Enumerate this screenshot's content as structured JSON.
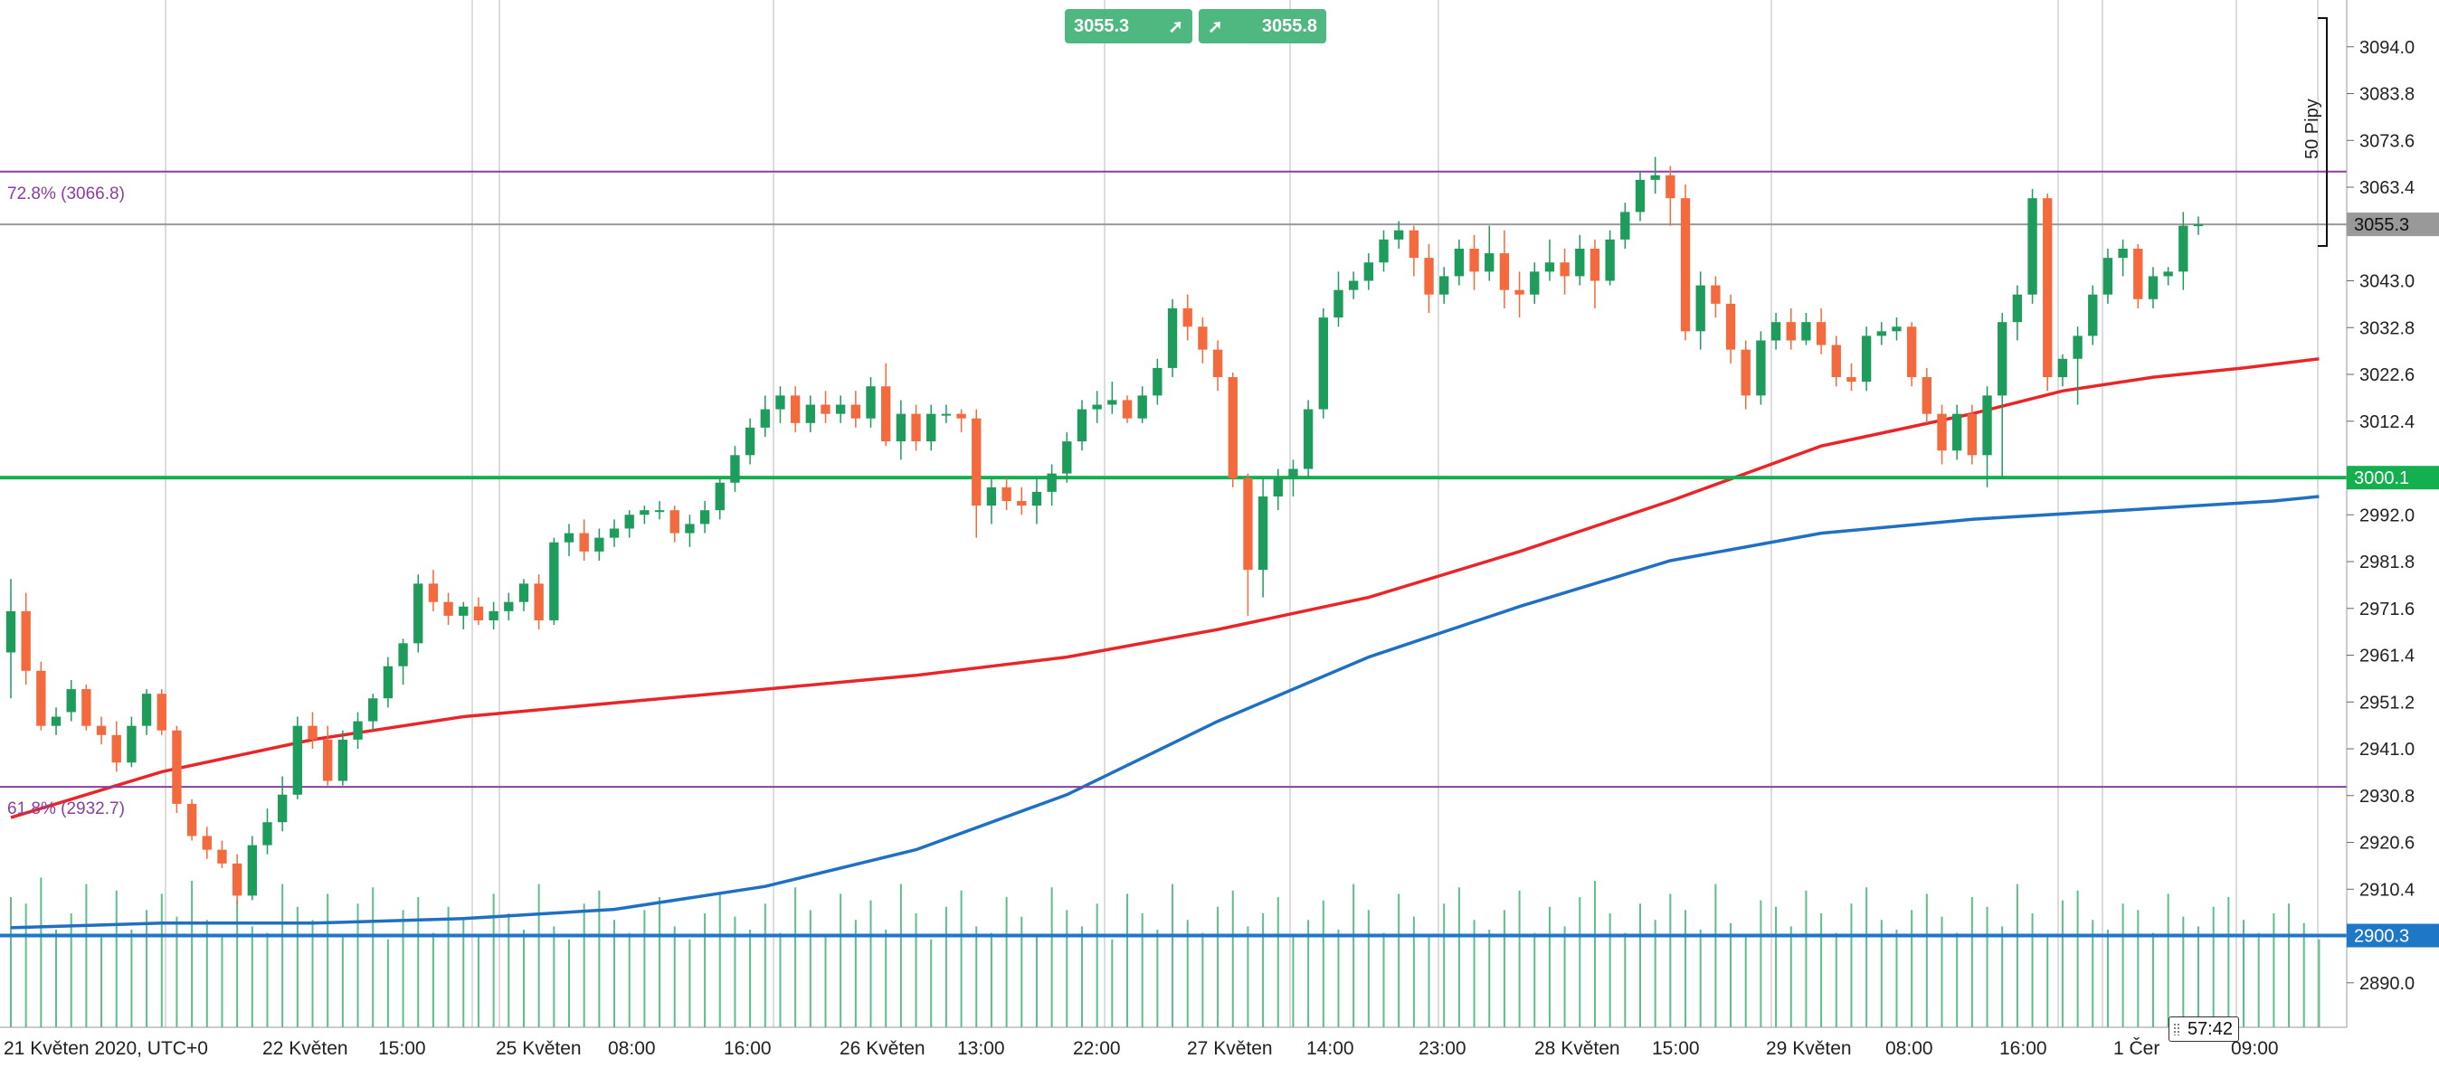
{
  "trade_buttons": {
    "sell": {
      "price": "3055.3",
      "icon": "arrow-up-right-icon"
    },
    "buy": {
      "price": "3055.8",
      "icon": "arrow-up-right-icon"
    }
  },
  "timer": {
    "value": "57:42"
  },
  "pips_label": "50 Pipy",
  "colors": {
    "up": "#1e9c5b",
    "down": "#f26a3d",
    "ma_fast": "#e8262a",
    "ma_slow": "#1f6fc2",
    "fib": "#8a3ea0",
    "hline_green": "#14b050",
    "hline_blue": "#1f77c8",
    "volume": "#5cbf8a",
    "current_price_bg": "#999999"
  },
  "chart_data": {
    "type": "candlestick",
    "timeframe": "1h",
    "x_tick_labels": [
      "21 Květen 2020, UTC+0",
      "22 Květen",
      "15:00",
      "25 Květen",
      "08:00",
      "16:00",
      "26 Květen",
      "13:00",
      "22:00",
      "27 Květen",
      "14:00",
      "23:00",
      "28 Květen",
      "15:00",
      "29 Květen",
      "08:00",
      "16:00",
      "1 Čer",
      "09:00"
    ],
    "y_ticks": [
      2890.0,
      2900.3,
      2910.4,
      2920.6,
      2930.8,
      2941.0,
      2951.2,
      2961.4,
      2971.6,
      2981.8,
      2992.0,
      3000.1,
      3012.4,
      3022.6,
      3032.8,
      3043.0,
      3055.3,
      3063.4,
      3073.6,
      3083.8,
      3094.0
    ],
    "ylim": [
      2880.3,
      3104.2
    ],
    "current_price": 3055.3,
    "horizontal_lines": [
      {
        "name": "level-3000",
        "value": 3000.1,
        "label": "3000.1",
        "color": "#14b050"
      },
      {
        "name": "level-2900",
        "value": 2900.3,
        "label": "2900.3",
        "color": "#1f77c8"
      }
    ],
    "fib_levels": [
      {
        "label": "72.8% (3066.8)",
        "value": 3066.8
      },
      {
        "label": "61.8% (2932.7)",
        "value": 2932.7
      }
    ],
    "candles": [
      [
        2962.0,
        2978.0,
        2952.0,
        2971.0
      ],
      [
        2971.0,
        2975.0,
        2955.0,
        2958.0
      ],
      [
        2958.0,
        2960.0,
        2945.0,
        2946.0
      ],
      [
        2946.0,
        2950.0,
        2944.0,
        2948.0
      ],
      [
        2949.0,
        2956.0,
        2947.0,
        2954.0
      ],
      [
        2954.0,
        2955.0,
        2945.0,
        2946.0
      ],
      [
        2946.0,
        2948.0,
        2942.0,
        2944.0
      ],
      [
        2944.0,
        2947.0,
        2936.0,
        2938.0
      ],
      [
        2938.0,
        2948.0,
        2937.0,
        2946.0
      ],
      [
        2946.0,
        2954.0,
        2944.0,
        2953.0
      ],
      [
        2953.0,
        2954.0,
        2944.0,
        2945.0
      ],
      [
        2945.0,
        2946.0,
        2927.0,
        2929.0
      ],
      [
        2929.0,
        2930.0,
        2921.0,
        2922.0
      ],
      [
        2922.0,
        2924.0,
        2917.0,
        2919.0
      ],
      [
        2919.0,
        2921.0,
        2915.0,
        2916.0
      ],
      [
        2916.0,
        2918.0,
        2907.0,
        2909.0
      ],
      [
        2909.0,
        2922.0,
        2908.0,
        2920.0
      ],
      [
        2920.0,
        2928.0,
        2918.0,
        2925.0
      ],
      [
        2925.0,
        2935.0,
        2923.0,
        2931.0
      ],
      [
        2931.0,
        2948.0,
        2930.0,
        2946.0
      ],
      [
        2946.0,
        2949.0,
        2941.0,
        2943.0
      ],
      [
        2943.0,
        2946.0,
        2933.0,
        2934.0
      ],
      [
        2934.0,
        2945.0,
        2933.0,
        2943.0
      ],
      [
        2943.0,
        2949.0,
        2941.0,
        2947.0
      ],
      [
        2947.0,
        2953.0,
        2945.0,
        2952.0
      ],
      [
        2952.0,
        2961.0,
        2950.0,
        2959.0
      ],
      [
        2959.0,
        2965.0,
        2955.0,
        2964.0
      ],
      [
        2964.0,
        2979.0,
        2962.0,
        2977.0
      ],
      [
        2977.0,
        2980.0,
        2971.0,
        2973.0
      ],
      [
        2973.0,
        2975.0,
        2968.0,
        2970.0
      ],
      [
        2970.0,
        2973.0,
        2967.0,
        2972.0
      ],
      [
        2972.0,
        2974.0,
        2968.0,
        2969.0
      ],
      [
        2969.0,
        2973.0,
        2967.0,
        2971.0
      ],
      [
        2971.0,
        2975.0,
        2969.0,
        2973.0
      ],
      [
        2973.0,
        2978.0,
        2971.0,
        2977.0
      ],
      [
        2977.0,
        2979.0,
        2967.0,
        2969.0
      ],
      [
        2969.0,
        2987.0,
        2968.0,
        2986.0
      ],
      [
        2986.0,
        2990.0,
        2983.0,
        2988.0
      ],
      [
        2988.0,
        2991.0,
        2982.0,
        2984.0
      ],
      [
        2984.0,
        2989.0,
        2982.0,
        2987.0
      ],
      [
        2987.0,
        2991.0,
        2985.0,
        2989.0
      ],
      [
        2989.0,
        2993.0,
        2987.0,
        2992.0
      ],
      [
        2992.0,
        2994.0,
        2990.0,
        2993.0
      ],
      [
        2993.0,
        2995.0,
        2991.0,
        2993.0
      ],
      [
        2993.0,
        2994.0,
        2986.0,
        2988.0
      ],
      [
        2988.0,
        2992.0,
        2985.0,
        2990.0
      ],
      [
        2990.0,
        2995.0,
        2988.0,
        2993.0
      ],
      [
        2993.0,
        3000.0,
        2991.0,
        2999.0
      ],
      [
        2999.0,
        3007.0,
        2997.0,
        3005.0
      ],
      [
        3005.0,
        3013.0,
        3003.0,
        3011.0
      ],
      [
        3011.0,
        3018.0,
        3009.0,
        3015.0
      ],
      [
        3015.0,
        3020.0,
        3012.0,
        3018.0
      ],
      [
        3018.0,
        3020.0,
        3010.0,
        3012.0
      ],
      [
        3012.0,
        3018.0,
        3010.0,
        3016.0
      ],
      [
        3016.0,
        3019.0,
        3012.0,
        3014.0
      ],
      [
        3014.0,
        3018.0,
        3012.0,
        3016.0
      ],
      [
        3016.0,
        3019.0,
        3011.0,
        3013.0
      ],
      [
        3013.0,
        3022.0,
        3011.0,
        3020.0
      ],
      [
        3020.0,
        3025.0,
        3007.0,
        3008.0
      ],
      [
        3008.0,
        3017.0,
        3004.0,
        3014.0
      ],
      [
        3014.0,
        3016.0,
        3006.0,
        3008.0
      ],
      [
        3008.0,
        3016.0,
        3006.0,
        3014.0
      ],
      [
        3014.0,
        3016.0,
        3012.0,
        3014.0
      ],
      [
        3014.0,
        3015.0,
        3010.0,
        3013.0
      ],
      [
        3013.0,
        3015.0,
        2987.0,
        2994.0
      ],
      [
        2994.0,
        3000.0,
        2990.0,
        2998.0
      ],
      [
        2998.0,
        3000.0,
        2993.0,
        2995.0
      ],
      [
        2995.0,
        2998.0,
        2992.0,
        2994.0
      ],
      [
        2994.0,
        3000.0,
        2990.0,
        2997.0
      ],
      [
        2997.0,
        3003.0,
        2994.0,
        3001.0
      ],
      [
        3001.0,
        3010.0,
        2999.0,
        3008.0
      ],
      [
        3008.0,
        3017.0,
        3006.0,
        3015.0
      ],
      [
        3015.0,
        3019.0,
        3012.0,
        3016.0
      ],
      [
        3016.0,
        3021.0,
        3014.0,
        3017.0
      ],
      [
        3017.0,
        3018.0,
        3012.0,
        3013.0
      ],
      [
        3013.0,
        3020.0,
        3012.0,
        3018.0
      ],
      [
        3018.0,
        3026.0,
        3016.0,
        3024.0
      ],
      [
        3024.0,
        3039.0,
        3022.0,
        3037.0
      ],
      [
        3037.0,
        3040.0,
        3030.0,
        3033.0
      ],
      [
        3033.0,
        3035.0,
        3025.0,
        3028.0
      ],
      [
        3028.0,
        3030.0,
        3019.0,
        3022.0
      ],
      [
        3022.0,
        3023.0,
        2998.0,
        3000.0
      ],
      [
        3000.0,
        3001.0,
        2970.0,
        2980.0
      ],
      [
        2980.0,
        3000.0,
        2974.0,
        2996.0
      ],
      [
        2996.0,
        3002.0,
        2993.0,
        3000.0
      ],
      [
        3000.0,
        3004.0,
        2996.0,
        3002.0
      ],
      [
        3002.0,
        3017.0,
        3000.0,
        3015.0
      ],
      [
        3015.0,
        3037.0,
        3013.0,
        3035.0
      ],
      [
        3035.0,
        3045.0,
        3033.0,
        3041.0
      ],
      [
        3041.0,
        3045.0,
        3039.0,
        3043.0
      ],
      [
        3043.0,
        3049.0,
        3041.0,
        3047.0
      ],
      [
        3047.0,
        3054.0,
        3045.0,
        3052.0
      ],
      [
        3052.0,
        3056.0,
        3050.0,
        3054.0
      ],
      [
        3054.0,
        3055.0,
        3044.0,
        3048.0
      ],
      [
        3048.0,
        3051.0,
        3036.0,
        3040.0
      ],
      [
        3040.0,
        3046.0,
        3038.0,
        3044.0
      ],
      [
        3044.0,
        3052.0,
        3042.0,
        3050.0
      ],
      [
        3050.0,
        3053.0,
        3041.0,
        3045.0
      ],
      [
        3045.0,
        3055.0,
        3043.0,
        3049.0
      ],
      [
        3049.0,
        3054.0,
        3037.0,
        3041.0
      ],
      [
        3041.0,
        3045.0,
        3035.0,
        3040.0
      ],
      [
        3040.0,
        3047.0,
        3038.0,
        3045.0
      ],
      [
        3045.0,
        3052.0,
        3043.0,
        3047.0
      ],
      [
        3047.0,
        3050.0,
        3040.0,
        3044.0
      ],
      [
        3044.0,
        3053.0,
        3042.0,
        3050.0
      ],
      [
        3050.0,
        3052.0,
        3037.0,
        3043.0
      ],
      [
        3043.0,
        3054.0,
        3042.0,
        3052.0
      ],
      [
        3052.0,
        3060.0,
        3050.0,
        3058.0
      ],
      [
        3058.0,
        3067.0,
        3056.0,
        3065.0
      ],
      [
        3065.0,
        3070.0,
        3062.0,
        3066.0
      ],
      [
        3066.0,
        3068.0,
        3055.0,
        3061.0
      ],
      [
        3061.0,
        3064.0,
        3030.0,
        3032.0
      ],
      [
        3032.0,
        3045.0,
        3028.0,
        3042.0
      ],
      [
        3042.0,
        3044.0,
        3035.0,
        3038.0
      ],
      [
        3038.0,
        3040.0,
        3025.0,
        3028.0
      ],
      [
        3028.0,
        3030.0,
        3015.0,
        3018.0
      ],
      [
        3018.0,
        3032.0,
        3016.0,
        3030.0
      ],
      [
        3030.0,
        3036.0,
        3028.0,
        3034.0
      ],
      [
        3034.0,
        3037.0,
        3028.0,
        3030.0
      ],
      [
        3030.0,
        3036.0,
        3029.0,
        3034.0
      ],
      [
        3034.0,
        3037.0,
        3027.0,
        3029.0
      ],
      [
        3029.0,
        3031.0,
        3020.0,
        3022.0
      ],
      [
        3022.0,
        3025.0,
        3019.0,
        3021.0
      ],
      [
        3021.0,
        3033.0,
        3019.0,
        3031.0
      ],
      [
        3031.0,
        3034.0,
        3029.0,
        3032.0
      ],
      [
        3032.0,
        3035.0,
        3030.0,
        3033.0
      ],
      [
        3033.0,
        3034.0,
        3020.0,
        3022.0
      ],
      [
        3022.0,
        3024.0,
        3012.0,
        3014.0
      ],
      [
        3014.0,
        3016.0,
        3003.0,
        3006.0
      ],
      [
        3006.0,
        3016.0,
        3004.0,
        3014.0
      ],
      [
        3014.0,
        3016.0,
        3003.0,
        3005.0
      ],
      [
        3005.0,
        3020.0,
        2998.0,
        3018.0
      ],
      [
        3018.0,
        3036.0,
        3000.0,
        3034.0
      ],
      [
        3034.0,
        3042.0,
        3030.0,
        3040.0
      ],
      [
        3040.0,
        3063.0,
        3038.0,
        3061.0
      ],
      [
        3061.0,
        3062.0,
        3019.0,
        3022.0
      ],
      [
        3022.0,
        3027.0,
        3020.0,
        3026.0
      ],
      [
        3026.0,
        3033.0,
        3016.0,
        3031.0
      ],
      [
        3031.0,
        3042.0,
        3029.0,
        3040.0
      ],
      [
        3040.0,
        3050.0,
        3038.0,
        3048.0
      ],
      [
        3048.0,
        3052.0,
        3044.0,
        3050.0
      ],
      [
        3050.0,
        3051.0,
        3037.0,
        3039.0
      ],
      [
        3039.0,
        3046.0,
        3037.0,
        3044.0
      ],
      [
        3044.0,
        3046.0,
        3042.0,
        3045.0
      ],
      [
        3045.0,
        3058.0,
        3041.0,
        3055.0
      ],
      [
        3055.0,
        3057.0,
        3053.0,
        3055.3
      ]
    ],
    "ma_fast": {
      "color": "#e8262a",
      "points": [
        [
          0,
          2926
        ],
        [
          10,
          2936
        ],
        [
          20,
          2943
        ],
        [
          30,
          2948
        ],
        [
          40,
          2951
        ],
        [
          50,
          2954
        ],
        [
          60,
          2957
        ],
        [
          70,
          2961
        ],
        [
          80,
          2967
        ],
        [
          90,
          2974
        ],
        [
          100,
          2984
        ],
        [
          110,
          2995
        ],
        [
          120,
          3007
        ],
        [
          130,
          3014
        ],
        [
          136,
          3019
        ],
        [
          142,
          3022
        ],
        [
          148,
          3024
        ],
        [
          153,
          3026
        ]
      ]
    },
    "ma_slow": {
      "color": "#1f6fc2",
      "points": [
        [
          0,
          2902
        ],
        [
          10,
          2903
        ],
        [
          20,
          2903
        ],
        [
          30,
          2904
        ],
        [
          40,
          2906
        ],
        [
          50,
          2911
        ],
        [
          60,
          2919
        ],
        [
          70,
          2931
        ],
        [
          80,
          2947
        ],
        [
          90,
          2961
        ],
        [
          100,
          2972
        ],
        [
          110,
          2982
        ],
        [
          120,
          2988
        ],
        [
          130,
          2991
        ],
        [
          140,
          2993
        ],
        [
          150,
          2995
        ],
        [
          153,
          2996
        ]
      ]
    },
    "volume": [
      40,
      38,
      46,
      30,
      35,
      44,
      28,
      42,
      30,
      36,
      41,
      34,
      45,
      33,
      28,
      39,
      31,
      29,
      44,
      37,
      33,
      41,
      28,
      38,
      43,
      27,
      36,
      40,
      29,
      37,
      33,
      28,
      41,
      35,
      30,
      44,
      31,
      27,
      38,
      42,
      33,
      29,
      36,
      40,
      31,
      27,
      35,
      41,
      34,
      30,
      38,
      29,
      43,
      36,
      28,
      41,
      33,
      39,
      30,
      44,
      35,
      27,
      37,
      42,
      31,
      29,
      40,
      34,
      28,
      43,
      36,
      31,
      38,
      27,
      41,
      35,
      30,
      44,
      33,
      29,
      37,
      42,
      31,
      35,
      40,
      28,
      33,
      39,
      30,
      44,
      36,
      29,
      41,
      34,
      28,
      38,
      43,
      33,
      30,
      36,
      42,
      29,
      37,
      31,
      40,
      45,
      35,
      29,
      38,
      33,
      41,
      36,
      30,
      44,
      32,
      28,
      39,
      37,
      31,
      42,
      35,
      29,
      38,
      43,
      33,
      30,
      36,
      41,
      34,
      29,
      40,
      37,
      31,
      44,
      35,
      28,
      39,
      42,
      33,
      30,
      38,
      36,
      29,
      41,
      34,
      31,
      37,
      40,
      33,
      29,
      35,
      38,
      32,
      27
    ]
  }
}
